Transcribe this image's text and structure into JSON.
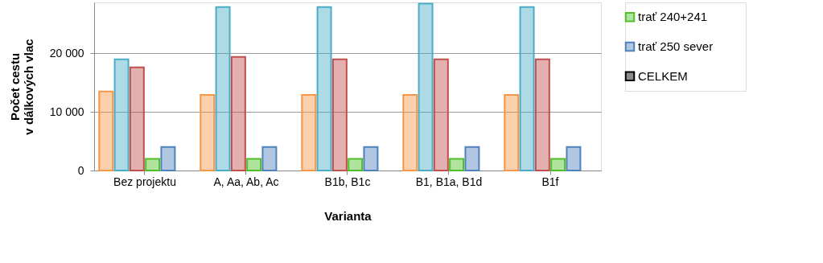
{
  "chart_data": {
    "type": "bar",
    "xlabel": "Varianta",
    "ylabel": "Počet cestu\nv dálkových vlac",
    "categories": [
      "Bez projektu",
      "A, Aa, Ab, Ac",
      "B1b, B1c",
      "B1, B1a, B1d",
      "B1f"
    ],
    "series": [
      {
        "color": "#f79646",
        "values": [
          13500,
          12900,
          12900,
          12900,
          12900
        ]
      },
      {
        "color": "#4bacc6",
        "values": [
          19000,
          27900,
          27900,
          28500,
          27900
        ]
      },
      {
        "color": "#c0504d",
        "values": [
          17600,
          19400,
          19000,
          19000,
          19000
        ]
      },
      {
        "name": "trať 240+241",
        "color": "#4fc028",
        "values": [
          2000,
          2000,
          2000,
          2000,
          2000
        ]
      },
      {
        "name": "trať 250 sever",
        "color": "#4f81bd",
        "values": [
          4000,
          4000,
          4000,
          4000,
          4000
        ]
      },
      {
        "name": "CELKEM",
        "color": "#000000",
        "values": [
          null,
          null,
          null,
          null,
          null
        ]
      }
    ],
    "ylim": [
      0,
      28700
    ],
    "yticks": [
      {
        "value": 0,
        "label": "0"
      },
      {
        "value": 10000,
        "label": "10 000"
      },
      {
        "value": 20000,
        "label": "20 000"
      }
    ],
    "grid": "y",
    "legend": "right"
  }
}
